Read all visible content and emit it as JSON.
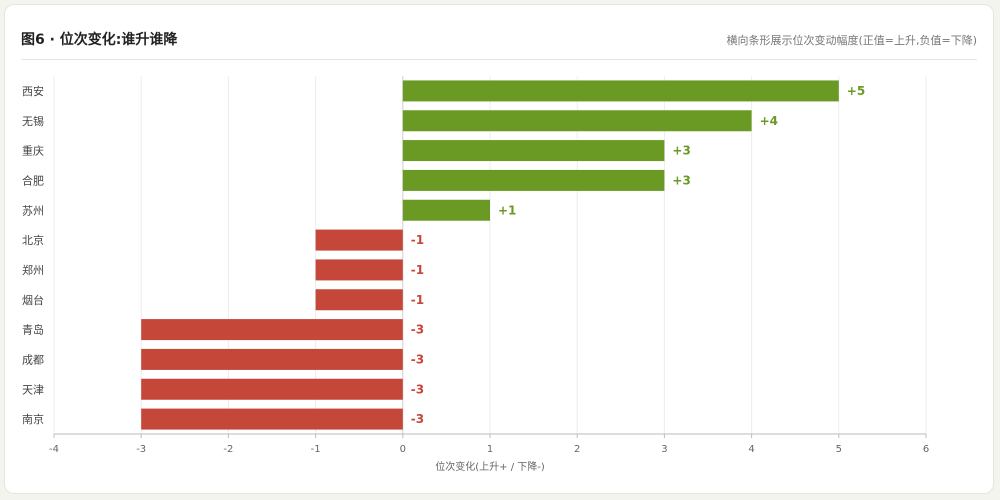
{
  "header": {
    "title": "图6 · 位次变化:谁升谁降",
    "subtitle": "横向条形展示位次变动幅度(正值=上升,负值=下降)"
  },
  "chart_data": {
    "type": "bar",
    "orientation": "horizontal",
    "categories": [
      "西安",
      "无锡",
      "重庆",
      "合肥",
      "苏州",
      "北京",
      "郑州",
      "烟台",
      "青岛",
      "成都",
      "天津",
      "南京"
    ],
    "values": [
      5,
      4,
      3,
      3,
      1,
      -1,
      -1,
      -1,
      -3,
      -3,
      -3,
      -3
    ],
    "data_labels": [
      "+5",
      "+4",
      "+3",
      "+3",
      "+1",
      "-1",
      "-1",
      "-1",
      "-3",
      "-3",
      "-3",
      "-3"
    ],
    "xlabel": "位次变化(上升+ / 下降-)",
    "xlim": [
      -4,
      6
    ],
    "xticks": [
      -4,
      -3,
      -2,
      -1,
      0,
      1,
      2,
      3,
      4,
      5,
      6
    ],
    "grid": "vertical",
    "colors": {
      "positive": "#6a9a23",
      "negative": "#c4473a"
    }
  }
}
